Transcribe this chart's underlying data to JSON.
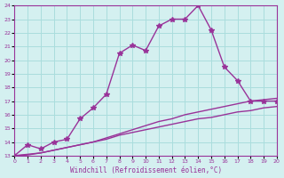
{
  "xlabel": "Windchill (Refroidissement éolien,°C)",
  "xlim": [
    0,
    20
  ],
  "ylim": [
    13,
    24
  ],
  "xticks": [
    0,
    1,
    2,
    3,
    4,
    5,
    6,
    7,
    8,
    9,
    10,
    11,
    12,
    13,
    14,
    15,
    16,
    17,
    18,
    19,
    20
  ],
  "yticks": [
    13,
    14,
    15,
    16,
    17,
    18,
    19,
    20,
    21,
    22,
    23,
    24
  ],
  "background_color": "#d4f0f0",
  "grid_color": "#aadddd",
  "line_color": "#993399",
  "curve1_x": [
    0,
    1,
    2,
    3,
    4,
    5,
    6,
    7,
    8,
    9,
    10,
    11,
    12,
    13,
    14,
    15,
    16,
    17,
    18,
    19,
    20
  ],
  "curve1_y": [
    13,
    13.8,
    13.5,
    14,
    14.2,
    15.7,
    16.5,
    17.5,
    20.5,
    21.1,
    20.7,
    22.5,
    23.0,
    23.0,
    24.0,
    22.2,
    19.5,
    18.5,
    17.0,
    17.0,
    17.0
  ],
  "curve2_x": [
    0,
    1,
    2,
    3,
    4,
    5,
    6,
    7,
    8,
    9,
    10,
    11,
    12,
    13,
    14,
    15,
    16,
    17,
    18,
    19,
    20
  ],
  "curve2_y": [
    13,
    13.1,
    13.2,
    13.4,
    13.6,
    13.8,
    14.0,
    14.2,
    14.5,
    14.7,
    14.9,
    15.1,
    15.3,
    15.5,
    15.7,
    15.8,
    16.0,
    16.2,
    16.3,
    16.5,
    16.6
  ],
  "curve3_x": [
    0,
    1,
    2,
    3,
    4,
    5,
    6,
    7,
    8,
    9,
    10,
    11,
    12,
    13,
    14,
    15,
    16,
    17,
    18,
    19,
    20
  ],
  "curve3_y": [
    13,
    13.05,
    13.2,
    13.4,
    13.6,
    13.8,
    14.0,
    14.3,
    14.6,
    14.9,
    15.2,
    15.5,
    15.7,
    16.0,
    16.2,
    16.4,
    16.6,
    16.8,
    17.0,
    17.1,
    17.2
  ],
  "marker": "x",
  "marker_size": 4,
  "line_width": 1.0
}
